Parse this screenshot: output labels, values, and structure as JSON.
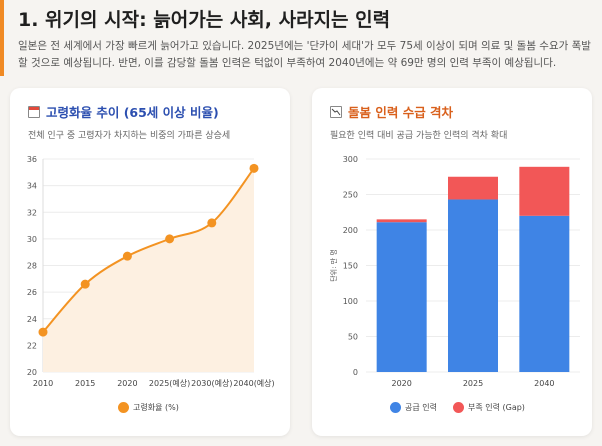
{
  "header": {
    "title": "1. 위기의 시작: 늙어가는 사회, 사라지는 인력",
    "description": "일본은 전 세계에서 가장 빠르게 늙어가고 있습니다. 2025년에는 '단카이 세대'가 모두 75세 이상이 되며 의료 및 돌봄 수요가 폭발할 것으로 예상됩니다. 반면, 이를 감당할 돌봄 인력은 턱없이 부족하여 2040년에는 약 69만 명의 인력 부족이 예상됩니다."
  },
  "left_card": {
    "title": "고령화율 추이 (65세 이상 비율)",
    "subtitle": "전체 인구 중 고령자가 차지하는 비중의 가파른 상승세"
  },
  "right_card": {
    "title": "돌봄 인력 수급 격차",
    "subtitle": "필요한 인력 대비 공급 가능한 인력의 격차 확대"
  },
  "colors": {
    "accent": "#f08a24",
    "line": "#f39322",
    "area": "#fdf0e1",
    "supply": "#3f84e5",
    "gap": "#f25757"
  },
  "chart_data": [
    {
      "type": "line",
      "title": "고령화율 추이 (65세 이상 비율)",
      "categories": [
        "2010",
        "2015",
        "2020",
        "2025(예상)",
        "2030(예상)",
        "2040(예상)"
      ],
      "series": [
        {
          "name": "고령화율 (%)",
          "values": [
            23.0,
            26.6,
            28.7,
            30.0,
            31.2,
            35.3
          ]
        }
      ],
      "ylim": [
        20,
        36
      ],
      "yticks": [
        20,
        22,
        24,
        26,
        28,
        30,
        32,
        34,
        36
      ],
      "legend": "bottom",
      "fill": true
    },
    {
      "type": "bar",
      "stacked": true,
      "title": "돌봄 인력 수급 격차",
      "categories": [
        "2020",
        "2025",
        "2040"
      ],
      "series": [
        {
          "name": "공급 인력",
          "values": [
            211,
            243,
            220
          ]
        },
        {
          "name": "부족 인력 (Gap)",
          "values": [
            4,
            32,
            69
          ]
        }
      ],
      "ylabel": "단위: 만 명",
      "ylim": [
        0,
        300
      ],
      "yticks": [
        0,
        50,
        100,
        150,
        200,
        250,
        300
      ],
      "legend": "bottom"
    }
  ]
}
